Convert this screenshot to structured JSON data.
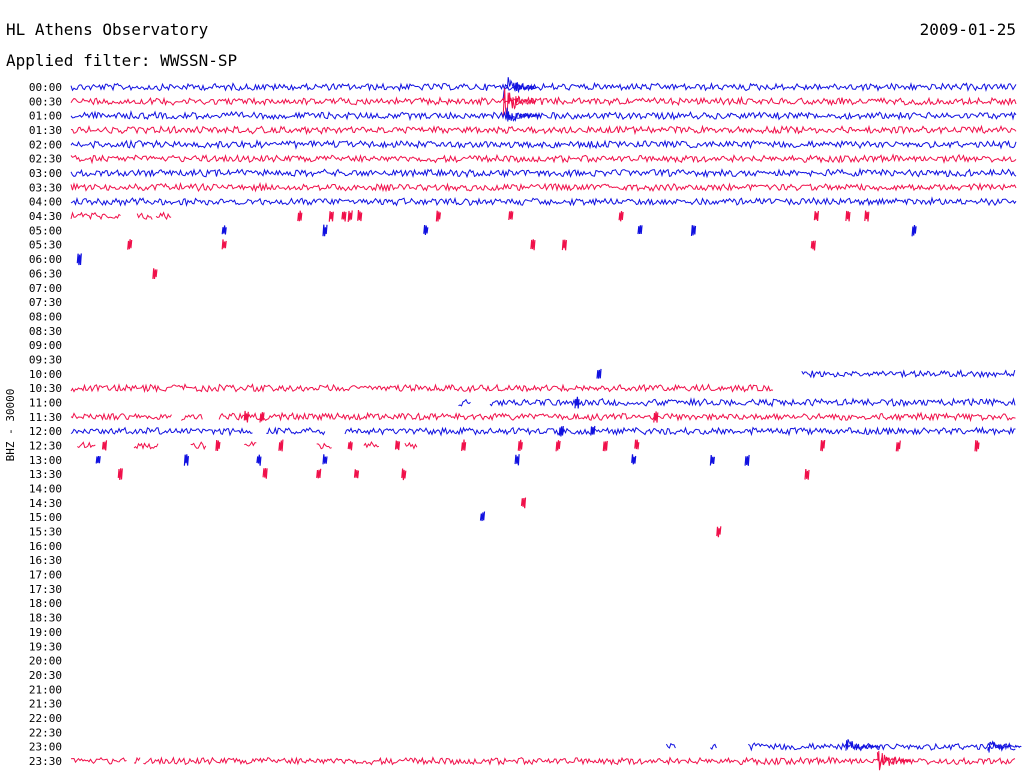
{
  "header": {
    "title": "HL Athens Observatory",
    "date": "2009-01-25",
    "filter": "Applied filter: WWSSN-SP"
  },
  "chart_data": {
    "type": "line",
    "title": "HL Athens Observatory",
    "date": "2009-01-25",
    "ylabel": "BHZ - 30000",
    "tick_labels": [
      "00:00",
      "00:30",
      "01:00",
      "01:30",
      "02:00",
      "02:30",
      "03:00",
      "03:30",
      "04:00",
      "04:30",
      "05:00",
      "05:30",
      "06:00",
      "06:30",
      "07:00",
      "07:30",
      "08:00",
      "08:30",
      "09:00",
      "09:30",
      "10:00",
      "10:30",
      "11:00",
      "11:30",
      "12:00",
      "12:30",
      "13:00",
      "13:30",
      "14:00",
      "14:30",
      "15:00",
      "15:30",
      "16:00",
      "16:30",
      "17:00",
      "17:30",
      "18:00",
      "18:30",
      "19:00",
      "19:30",
      "20:00",
      "20:30",
      "21:00",
      "21:30",
      "22:00",
      "22:30",
      "23:00",
      "23:30"
    ],
    "colors": {
      "even": "#1010e0",
      "odd": "#f0104a"
    },
    "x_unit": "minute within 30-min row",
    "x_range": [
      0,
      30
    ],
    "rows": [
      {
        "segments": [
          [
            0,
            30
          ]
        ],
        "events": [
          [
            13.7,
            2.5
          ]
        ]
      },
      {
        "segments": [
          [
            0,
            30
          ]
        ],
        "events": [
          [
            13.7,
            3.0
          ]
        ]
      },
      {
        "segments": [
          [
            0,
            30
          ]
        ],
        "events": [
          [
            13.8,
            1.5
          ]
        ]
      },
      {
        "segments": [
          [
            0,
            30
          ]
        ],
        "events": []
      },
      {
        "segments": [
          [
            0,
            30
          ]
        ],
        "events": []
      },
      {
        "segments": [
          [
            0,
            30
          ]
        ],
        "events": []
      },
      {
        "segments": [
          [
            0,
            30
          ]
        ],
        "events": []
      },
      {
        "segments": [
          [
            0,
            30
          ]
        ],
        "events": []
      },
      {
        "segments": [
          [
            0,
            30
          ]
        ],
        "events": []
      },
      {
        "segments": [
          [
            0,
            1.6
          ],
          [
            2.1,
            2.6
          ],
          [
            2.7,
            3.2
          ]
        ],
        "blips": [
          7.2,
          8.2,
          8.6,
          8.8,
          9.1,
          11.6,
          13.9,
          17.4,
          23.6,
          24.6,
          25.2
        ],
        "events": []
      },
      {
        "segments": [],
        "blips": [
          4.8,
          8.0,
          11.2,
          18.0,
          19.7,
          26.7
        ],
        "events": []
      },
      {
        "segments": [],
        "blips": [
          1.8,
          4.8,
          14.6,
          15.6,
          23.5
        ],
        "events": []
      },
      {
        "segments": [],
        "blips": [
          0.2
        ],
        "events": []
      },
      {
        "segments": [],
        "blips": [
          2.6
        ],
        "events": []
      },
      {
        "segments": [],
        "events": []
      },
      {
        "segments": [],
        "events": []
      },
      {
        "segments": [],
        "events": []
      },
      {
        "segments": [],
        "events": []
      },
      {
        "segments": [],
        "events": []
      },
      {
        "segments": [],
        "events": []
      },
      {
        "segments": [
          [
            23.2,
            30
          ]
        ],
        "blips": [
          16.7
        ],
        "events": []
      },
      {
        "segments": [
          [
            0,
            22.3
          ]
        ],
        "events": []
      },
      {
        "segments": [
          [
            12.3,
            12.7
          ],
          [
            13.3,
            30
          ]
        ],
        "blips": [
          16.0
        ],
        "events": []
      },
      {
        "segments": [
          [
            0,
            3.2
          ],
          [
            3.5,
            4.2
          ],
          [
            4.7,
            30
          ]
        ],
        "blips": [
          5.5,
          6.0,
          18.5
        ],
        "events": []
      },
      {
        "segments": [
          [
            0,
            5.8
          ],
          [
            6.2,
            8.1
          ],
          [
            8.7,
            30
          ]
        ],
        "blips": [
          15.5,
          16.5
        ],
        "events": []
      },
      {
        "segments": [
          [
            0.2,
            0.8
          ],
          [
            2.0,
            2.8
          ],
          [
            3.8,
            4.3
          ],
          [
            5.5,
            5.9
          ],
          [
            7.8,
            8.3
          ],
          [
            9.3,
            9.8
          ],
          [
            10.6,
            11.0
          ]
        ],
        "blips": [
          1.0,
          4.6,
          6.6,
          8.8,
          10.3,
          12.4,
          14.2,
          15.4,
          16.9,
          17.9,
          23.8,
          26.2,
          28.7
        ],
        "events": []
      },
      {
        "segments": [],
        "blips": [
          0.8,
          3.6,
          5.9,
          8.0,
          14.1,
          17.8,
          20.3,
          21.4
        ],
        "events": []
      },
      {
        "segments": [],
        "blips": [
          1.5,
          6.1,
          7.8,
          9.0,
          10.5,
          23.3
        ],
        "events": []
      },
      {
        "segments": [],
        "events": []
      },
      {
        "segments": [],
        "blips": [
          14.3
        ],
        "events": []
      },
      {
        "segments": [],
        "blips": [
          13.0
        ],
        "events": []
      },
      {
        "segments": [],
        "blips": [
          20.5
        ],
        "events": []
      },
      {
        "segments": [],
        "events": []
      },
      {
        "segments": [],
        "events": []
      },
      {
        "segments": [],
        "events": []
      },
      {
        "segments": [],
        "events": []
      },
      {
        "segments": [],
        "events": []
      },
      {
        "segments": [],
        "events": []
      },
      {
        "segments": [],
        "events": []
      },
      {
        "segments": [],
        "events": []
      },
      {
        "segments": [],
        "events": []
      },
      {
        "segments": [],
        "events": []
      },
      {
        "segments": [],
        "events": []
      },
      {
        "segments": [],
        "events": []
      },
      {
        "segments": [],
        "events": []
      },
      {
        "segments": [],
        "events": []
      },
      {
        "segments": [
          [
            18.9,
            19.2
          ],
          [
            20.3,
            20.5
          ],
          [
            21.5,
            30
          ]
        ],
        "events": [
          [
            24.6,
            1.5
          ],
          [
            29.1,
            1.3
          ]
        ]
      },
      {
        "segments": [
          [
            0,
            1.8
          ],
          [
            2.0,
            2.2
          ],
          [
            2.3,
            30
          ]
        ],
        "events": [
          [
            25.6,
            2.0
          ]
        ]
      }
    ]
  }
}
